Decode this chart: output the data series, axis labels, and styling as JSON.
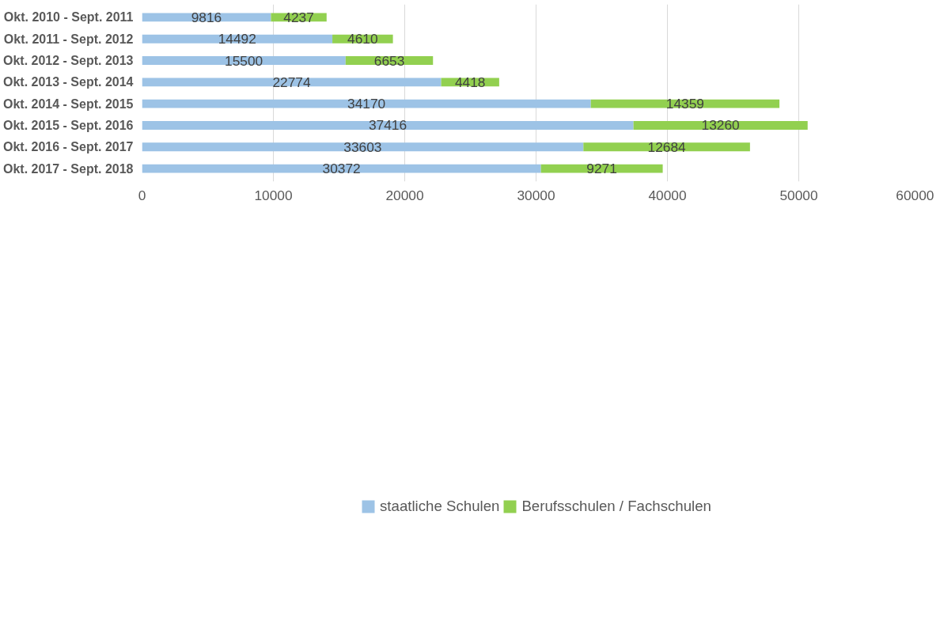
{
  "chart_data": {
    "type": "bar",
    "orientation": "horizontal",
    "stacked": true,
    "categories": [
      "Okt. 2010 - Sept. 2011",
      "Okt. 2011 - Sept. 2012",
      "Okt. 2012 - Sept. 2013",
      "Okt. 2013 - Sept. 2014",
      "Okt. 2014 - Sept. 2015",
      "Okt. 2015 - Sept. 2016",
      "Okt. 2016 - Sept. 2017",
      "Okt. 2017 - Sept. 2018"
    ],
    "series": [
      {
        "name": "staatliche Schulen",
        "color": "#9dc3e6",
        "values": [
          9816,
          14492,
          15500,
          22774,
          34170,
          37416,
          33603,
          30372
        ]
      },
      {
        "name": "Berufsschulen / Fachschulen",
        "color": "#92d050",
        "values": [
          4237,
          4610,
          6653,
          4418,
          14359,
          13260,
          12684,
          9271
        ]
      }
    ],
    "xlim": [
      0,
      60000
    ],
    "xticks": [
      0,
      10000,
      20000,
      30000,
      40000,
      50000,
      60000
    ],
    "grid": "x",
    "legend": "bottom",
    "data_labels": true
  }
}
